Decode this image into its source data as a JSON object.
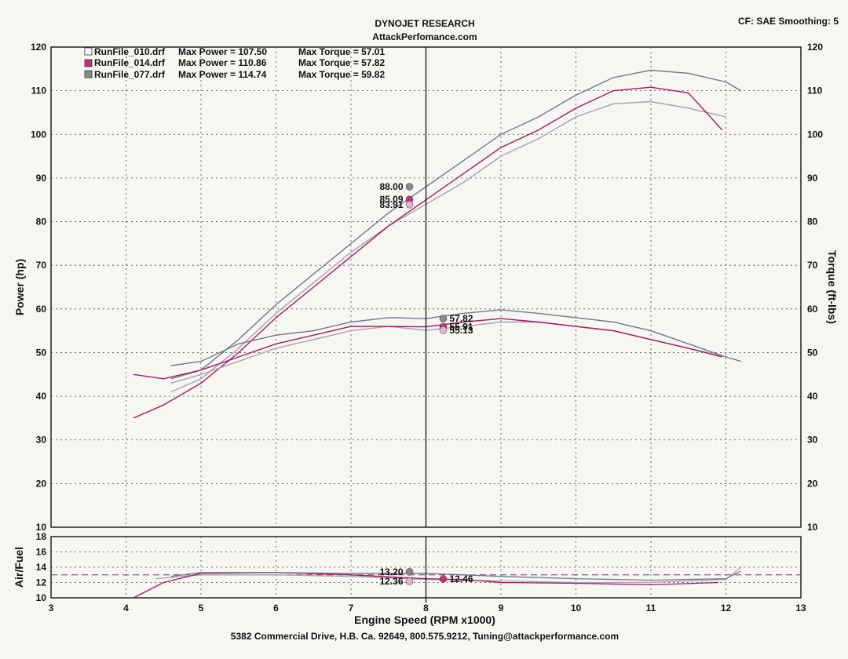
{
  "header": {
    "title": "DYNOJET RESEARCH",
    "subtitle": "AttackPerfomance.com",
    "settings": "CF: SAE  Smoothing: 5"
  },
  "footer": {
    "address": "5382 Commercial Drive, H.B. Ca. 92649, 800.575.9212, Tuning@attackperformance.com"
  },
  "colors": {
    "run010": "#a8a0ae",
    "run014": "#a81860",
    "run077": "#707a88",
    "marker010": "#e2b6cc",
    "marker014": "#c4307c",
    "marker077": "#8a8a8a"
  },
  "chart_data": [
    {
      "type": "line",
      "xlabel": "Engine Speed (RPM x1000)",
      "ylabel": "Power (hp)",
      "y2label": "Torque (ft-lbs)",
      "xlim": [
        3,
        13
      ],
      "ylim": [
        10,
        120
      ],
      "y2lim": [
        10,
        120
      ],
      "x_ticks": [
        3,
        4,
        5,
        6,
        7,
        8,
        9,
        10,
        11,
        12,
        13
      ],
      "y_ticks": [
        10,
        20,
        30,
        40,
        50,
        60,
        70,
        80,
        90,
        100,
        110,
        120
      ],
      "grid": true,
      "legend_position": "top-left",
      "cursor_rpm": 8.0,
      "legend": [
        {
          "run": "RunFile_010.drf",
          "max_power_text": "Max Power = 107.50",
          "max_torque_text": "Max Torque = 57.01"
        },
        {
          "run": "RunFile_014.drf",
          "max_power_text": "Max Power = 110.86",
          "max_torque_text": "Max Torque = 57.82"
        },
        {
          "run": "RunFile_077.drf",
          "max_power_text": "Max Power = 114.74",
          "max_torque_text": "Max Torque = 59.82"
        }
      ],
      "cursor_values": {
        "power": [
          {
            "run": "RunFile_077.drf",
            "value": "88.00"
          },
          {
            "run": "RunFile_014.drf",
            "value": "85.09"
          },
          {
            "run": "RunFile_010.drf",
            "value": "83.91"
          }
        ],
        "torque": [
          {
            "run": "RunFile_077.drf",
            "value": "57.82"
          },
          {
            "run": "RunFile_014.drf",
            "value": "55.91"
          },
          {
            "run": "RunFile_010.drf",
            "value": "55.13"
          }
        ]
      },
      "series": [
        {
          "run": "RunFile_010.drf",
          "kind": "power",
          "x": [
            4.6,
            5.0,
            5.5,
            6.0,
            6.5,
            7.0,
            7.5,
            8.0,
            8.5,
            9.0,
            9.5,
            10.0,
            10.5,
            11.0,
            11.5,
            12.0
          ],
          "y": [
            41,
            44,
            51,
            59,
            66,
            73,
            79,
            84,
            89,
            95,
            99,
            104,
            107,
            107.5,
            106,
            104
          ]
        },
        {
          "run": "RunFile_014.drf",
          "kind": "power",
          "x": [
            4.1,
            4.5,
            5.0,
            5.5,
            6.0,
            6.5,
            7.0,
            7.5,
            8.0,
            8.5,
            9.0,
            9.5,
            10.0,
            10.5,
            11.0,
            11.5,
            11.95
          ],
          "y": [
            35,
            38,
            43,
            50,
            58,
            65,
            72,
            79,
            85,
            91,
            97,
            101,
            106,
            110,
            110.8,
            109.5,
            101
          ]
        },
        {
          "run": "RunFile_077.drf",
          "kind": "power",
          "x": [
            4.6,
            5.0,
            5.5,
            6.0,
            6.5,
            7.0,
            7.5,
            8.0,
            8.5,
            9.0,
            9.5,
            10.0,
            10.5,
            11.0,
            11.5,
            12.0,
            12.2
          ],
          "y": [
            44,
            46,
            53,
            61,
            68,
            75,
            82,
            88,
            94,
            100,
            104,
            109,
            113,
            114.7,
            114,
            112,
            110
          ]
        },
        {
          "run": "RunFile_010.drf",
          "kind": "torque",
          "x": [
            4.6,
            5.0,
            5.5,
            6.0,
            6.5,
            7.0,
            7.5,
            8.0,
            8.5,
            9.0,
            9.5,
            10.0,
            10.5,
            11.0,
            11.5,
            12.0
          ],
          "y": [
            43,
            45,
            48,
            51,
            53,
            55,
            56,
            55.1,
            56,
            57,
            57,
            56,
            55,
            53,
            51,
            49
          ]
        },
        {
          "run": "RunFile_014.drf",
          "kind": "torque",
          "x": [
            4.1,
            4.5,
            5.0,
            5.5,
            6.0,
            6.5,
            7.0,
            7.5,
            8.0,
            8.5,
            9.0,
            9.5,
            10.0,
            10.5,
            11.0,
            11.5,
            11.95
          ],
          "y": [
            45,
            44,
            46,
            49,
            52,
            54,
            56,
            56,
            55.9,
            57,
            57.8,
            57,
            56,
            55,
            53,
            51,
            49
          ]
        },
        {
          "run": "RunFile_077.drf",
          "kind": "torque",
          "x": [
            4.6,
            5.0,
            5.5,
            6.0,
            6.5,
            7.0,
            7.5,
            8.0,
            8.5,
            9.0,
            9.5,
            10.0,
            10.5,
            11.0,
            11.5,
            12.0,
            12.2
          ],
          "y": [
            47,
            48,
            52,
            54,
            55,
            57,
            58,
            57.8,
            59,
            59.8,
            59,
            58,
            57,
            55,
            52,
            49,
            48
          ]
        }
      ]
    },
    {
      "type": "line",
      "ylabel": "Air/Fuel",
      "xlabel": "Engine Speed (RPM x1000)",
      "xlim": [
        3,
        13
      ],
      "ylim": [
        10,
        18
      ],
      "y_ticks": [
        10,
        12,
        14,
        16,
        18
      ],
      "grid": true,
      "reference_line": 13.0,
      "cursor_values": [
        {
          "run": "RunFile_077.drf",
          "value": "13.20"
        },
        {
          "run": "RunFile_010.drf",
          "value": "12.36"
        },
        {
          "run": "RunFile_014.drf",
          "value": "12.46"
        }
      ],
      "series": [
        {
          "run": "RunFile_010.drf",
          "x": [
            4.4,
            5.0,
            6.0,
            7.0,
            8.0,
            9.0,
            10.0,
            11.0,
            12.0,
            12.2
          ],
          "y": [
            12.5,
            13.0,
            13.0,
            12.8,
            12.4,
            12.2,
            12.0,
            12.0,
            12.4,
            14.0
          ]
        },
        {
          "run": "RunFile_014.drf",
          "x": [
            4.1,
            4.5,
            5.0,
            6.0,
            7.0,
            8.0,
            8.5,
            9.0,
            10.0,
            11.0,
            11.9
          ],
          "y": [
            10.0,
            12.0,
            13.2,
            13.3,
            13.0,
            12.5,
            12.4,
            12.0,
            11.9,
            11.7,
            12.0
          ]
        },
        {
          "run": "RunFile_077.drf",
          "x": [
            4.6,
            5.0,
            6.0,
            7.0,
            8.0,
            9.0,
            10.0,
            11.0,
            12.0,
            12.2
          ],
          "y": [
            12.8,
            13.3,
            13.3,
            13.2,
            13.2,
            12.8,
            12.5,
            12.3,
            12.5,
            13.5
          ]
        }
      ]
    }
  ]
}
